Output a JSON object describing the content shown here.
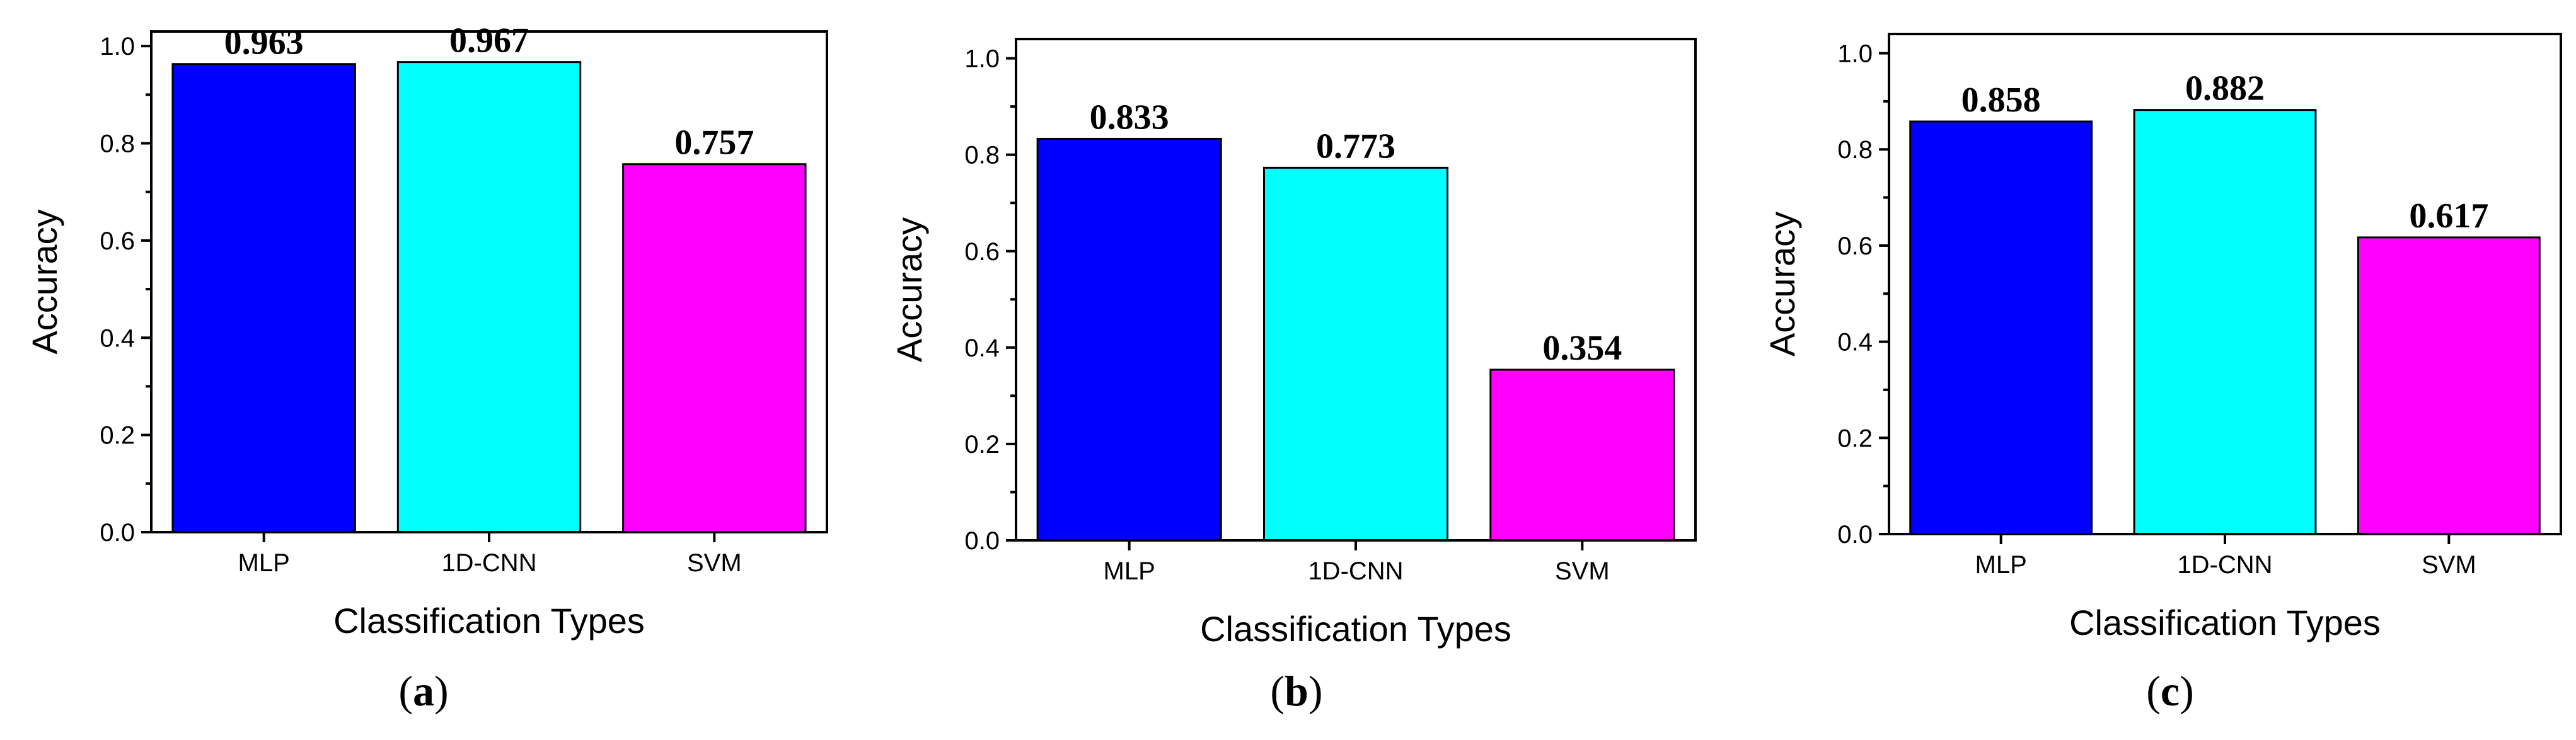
{
  "chart_data": [
    {
      "type": "bar",
      "panel_label": "a",
      "categories": [
        "MLP",
        "1D-CNN",
        "SVM"
      ],
      "values": [
        0.963,
        0.967,
        0.757
      ],
      "value_labels": [
        "0.963",
        "0.967",
        "0.757"
      ],
      "colors": [
        "#0000ff",
        "#00ffff",
        "#ff00ff"
      ],
      "xlabel": "Classification Types",
      "ylabel": "Accuracy",
      "ylim": [
        0,
        1.03
      ],
      "yticks": [
        "0.0",
        "0.2",
        "0.4",
        "0.6",
        "0.8",
        "1.0"
      ],
      "grid": false
    },
    {
      "type": "bar",
      "panel_label": "b",
      "categories": [
        "MLP",
        "1D-CNN",
        "SVM"
      ],
      "values": [
        0.833,
        0.773,
        0.354
      ],
      "value_labels": [
        "0.833",
        "0.773",
        "0.354"
      ],
      "colors": [
        "#0000ff",
        "#00ffff",
        "#ff00ff"
      ],
      "xlabel": "Classification Types",
      "ylabel": "Accuracy",
      "ylim": [
        0,
        1.04
      ],
      "yticks": [
        "0.0",
        "0.2",
        "0.4",
        "0.6",
        "0.8",
        "1.0"
      ],
      "grid": false
    },
    {
      "type": "bar",
      "panel_label": "c",
      "categories": [
        "MLP",
        "1D-CNN",
        "SVM"
      ],
      "values": [
        0.858,
        0.882,
        0.617
      ],
      "value_labels": [
        "0.858",
        "0.882",
        "0.617"
      ],
      "colors": [
        "#0000ff",
        "#00ffff",
        "#ff00ff"
      ],
      "xlabel": "Classification Types",
      "ylabel": "Accuracy",
      "ylim": [
        0,
        1.04
      ],
      "yticks": [
        "0.0",
        "0.2",
        "0.4",
        "0.6",
        "0.8",
        "1.0"
      ],
      "grid": false
    }
  ]
}
